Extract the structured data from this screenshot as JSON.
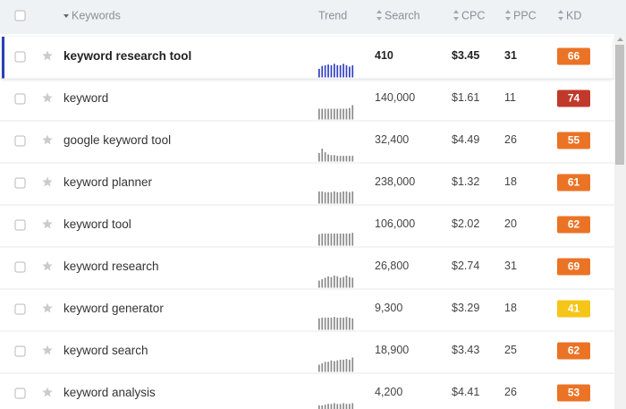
{
  "header": {
    "keywords": "Keywords",
    "trend": "Trend",
    "search": "Search",
    "cpc": "CPC",
    "ppc": "PPC",
    "kd": "KD"
  },
  "rows": [
    {
      "keyword": "keyword research tool",
      "trend": [
        60,
        80,
        85,
        90,
        85,
        95,
        85,
        85,
        95,
        85,
        75,
        85
      ],
      "search": "410",
      "cpc": "$3.45",
      "ppc": 31,
      "kd": 66,
      "kd_color": "#eb7325",
      "selected": true
    },
    {
      "keyword": "keyword",
      "trend": [
        75,
        75,
        75,
        75,
        75,
        75,
        75,
        75,
        75,
        75,
        80,
        100
      ],
      "search": "140,000",
      "cpc": "$1.61",
      "ppc": 11,
      "kd": 74,
      "kd_color": "#c0392b",
      "selected": false
    },
    {
      "keyword": "google keyword tool",
      "trend": [
        60,
        90,
        65,
        50,
        45,
        45,
        40,
        40,
        40,
        40,
        40,
        40
      ],
      "search": "32,400",
      "cpc": "$4.49",
      "ppc": 26,
      "kd": 55,
      "kd_color": "#eb7325",
      "selected": false
    },
    {
      "keyword": "keyword planner",
      "trend": [
        85,
        85,
        80,
        80,
        80,
        85,
        80,
        80,
        85,
        85,
        80,
        85
      ],
      "search": "238,000",
      "cpc": "$1.32",
      "ppc": 18,
      "kd": 61,
      "kd_color": "#eb7325",
      "selected": false
    },
    {
      "keyword": "keyword tool",
      "trend": [
        80,
        85,
        85,
        85,
        85,
        85,
        85,
        85,
        85,
        85,
        85,
        90
      ],
      "search": "106,000",
      "cpc": "$2.02",
      "ppc": 20,
      "kd": 62,
      "kd_color": "#eb7325",
      "selected": false
    },
    {
      "keyword": "keyword research",
      "trend": [
        50,
        60,
        70,
        80,
        75,
        85,
        80,
        70,
        75,
        85,
        75,
        70
      ],
      "search": "26,800",
      "cpc": "$2.74",
      "ppc": 31,
      "kd": 69,
      "kd_color": "#eb7325",
      "selected": false
    },
    {
      "keyword": "keyword generator",
      "trend": [
        80,
        85,
        85,
        85,
        85,
        90,
        85,
        85,
        85,
        90,
        85,
        80
      ],
      "search": "9,300",
      "cpc": "$3.29",
      "ppc": 18,
      "kd": 41,
      "kd_color": "#f5c518",
      "selected": false
    },
    {
      "keyword": "keyword search",
      "trend": [
        50,
        60,
        70,
        70,
        80,
        75,
        80,
        85,
        85,
        90,
        85,
        100
      ],
      "search": "18,900",
      "cpc": "$3.43",
      "ppc": 25,
      "kd": 62,
      "kd_color": "#eb7325",
      "selected": false
    },
    {
      "keyword": "keyword analysis",
      "trend": [
        60,
        60,
        65,
        70,
        70,
        75,
        70,
        70,
        75,
        70,
        70,
        75
      ],
      "search": "4,200",
      "cpc": "$4.41",
      "ppc": 26,
      "kd": 53,
      "kd_color": "#eb7325",
      "selected": false
    }
  ]
}
